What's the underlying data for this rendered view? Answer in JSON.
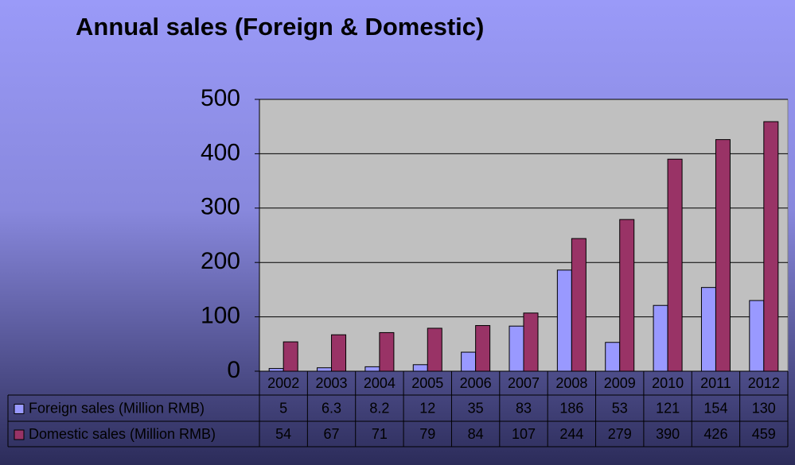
{
  "chart_data": {
    "type": "bar",
    "title": "Annual sales (Foreign & Domestic)",
    "categories": [
      "2002",
      "2003",
      "2004",
      "2005",
      "2006",
      "2007",
      "2008",
      "2009",
      "2010",
      "2011",
      "2012"
    ],
    "series": [
      {
        "name": "Foreign sales (Million RMB)",
        "color": "#9999ff",
        "values": [
          5,
          6.3,
          8.2,
          12,
          35,
          83,
          186,
          53,
          121,
          154,
          130
        ]
      },
      {
        "name": "Domestic sales (Million RMB)",
        "color": "#993366",
        "values": [
          54,
          67,
          71,
          79,
          84,
          107,
          244,
          279,
          390,
          426,
          459
        ]
      }
    ],
    "ylim": [
      0,
      500
    ],
    "yticks": [
      0,
      100,
      200,
      300,
      400,
      500
    ],
    "grid": true,
    "data_table": true
  }
}
